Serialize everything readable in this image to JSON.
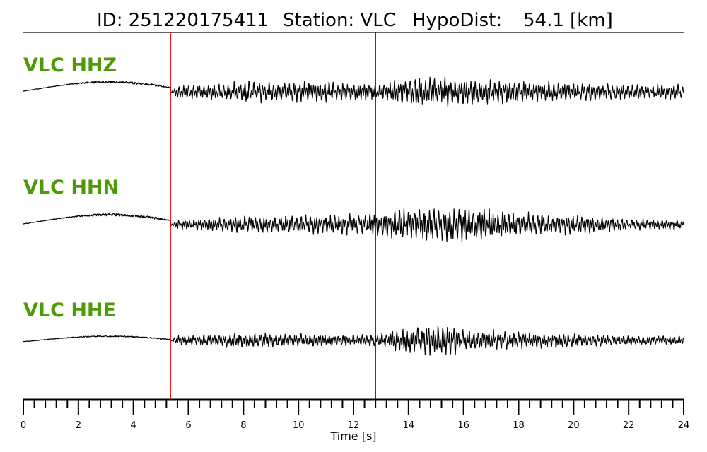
{
  "title": {
    "id_text": "ID: 251220175411",
    "station_text": "Station: VLC",
    "hypodist_text": "HypoDist:",
    "hypodist_value": "54.1 [km]"
  },
  "colors": {
    "trace": "#000000",
    "label": "#4e9a06",
    "p_pick": "#ff0000",
    "s_pick": "#0000cc"
  },
  "chart_data": {
    "type": "line",
    "xlabel": "Time [s]",
    "xlim": [
      0,
      24
    ],
    "x_major_ticks": [
      0,
      2,
      4,
      6,
      8,
      10,
      12,
      14,
      16,
      18,
      20,
      22,
      24
    ],
    "x_tick_labels": [
      "0",
      "2",
      "4",
      "6",
      "8",
      "10",
      "12",
      "14",
      "16",
      "18",
      "20",
      "22",
      "24"
    ],
    "x_minor_step": 0.4,
    "grid": false,
    "picks": [
      {
        "time": 5.35,
        "color": "#ff0000"
      },
      {
        "time": 12.8,
        "color": "#0000cc"
      }
    ],
    "series": [
      {
        "name": "VLC HHZ",
        "t": [
          0,
          1,
          2,
          3,
          4,
          5,
          5.35,
          5.6,
          8,
          10,
          12.8,
          14,
          15,
          16,
          18,
          20,
          22,
          24
        ],
        "amp": [
          0.6,
          0.6,
          1.3,
          2.6,
          2.3,
          2.2,
          0.6,
          7,
          11,
          11,
          10,
          14,
          16,
          15,
          12,
          10,
          8,
          8
        ]
      },
      {
        "name": "VLC HHN",
        "t": [
          0,
          1,
          2,
          3,
          4,
          5,
          5.35,
          5.6,
          8,
          10,
          12.8,
          14,
          15,
          16,
          18,
          20,
          22,
          24
        ],
        "amp": [
          0.6,
          0.6,
          1.5,
          3.0,
          2.7,
          2.4,
          0.8,
          5,
          9,
          10,
          11,
          17,
          20,
          18,
          13,
          10,
          6,
          5
        ]
      },
      {
        "name": "VLC HHE",
        "t": [
          0,
          1,
          2,
          3,
          4,
          5,
          5.35,
          5.6,
          8,
          10,
          12.8,
          14,
          15,
          16,
          18,
          20,
          22,
          24
        ],
        "amp": [
          0.5,
          0.5,
          1.0,
          1.5,
          1.3,
          1.4,
          0.5,
          5,
          8,
          7,
          6,
          14,
          18,
          12,
          9,
          7,
          5,
          5
        ]
      }
    ]
  }
}
